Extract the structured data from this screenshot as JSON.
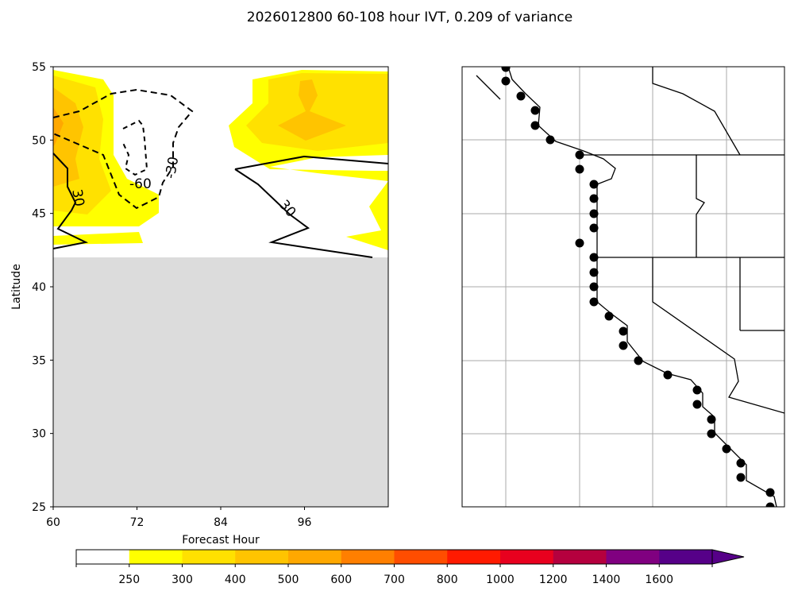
{
  "chart_data": [
    {
      "type": "heatmap",
      "title": "2026012800 60-108 hour IVT, 0.209 of variance",
      "xlabel": "Forecast Hour",
      "ylabel": "Latitude",
      "xlim": [
        60,
        108
      ],
      "ylim": [
        25,
        55
      ],
      "xticks": [
        "60",
        "72",
        "84",
        "96"
      ],
      "yticks": [
        "25",
        "30",
        "35",
        "40",
        "45",
        "50",
        "55"
      ],
      "no_data_below_latitude": 42,
      "contour_labels": [
        "-60",
        "-30",
        "30",
        "30"
      ],
      "contour_levels": [
        -60,
        -30,
        30
      ]
    },
    {
      "type": "scatter",
      "description_free": true,
      "points_count": 31
    }
  ],
  "colorbar": {
    "ticks": [
      "250",
      "300",
      "400",
      "500",
      "600",
      "700",
      "800",
      "1000",
      "1200",
      "1400",
      "1600"
    ],
    "colors": [
      "#ffffff",
      "#ffff00",
      "#ffe100",
      "#ffc400",
      "#ffa800",
      "#ff7f00",
      "#ff4d00",
      "#ff1a00",
      "#e8001e",
      "#b5003e",
      "#800080",
      "#560088"
    ],
    "extend": "max"
  }
}
